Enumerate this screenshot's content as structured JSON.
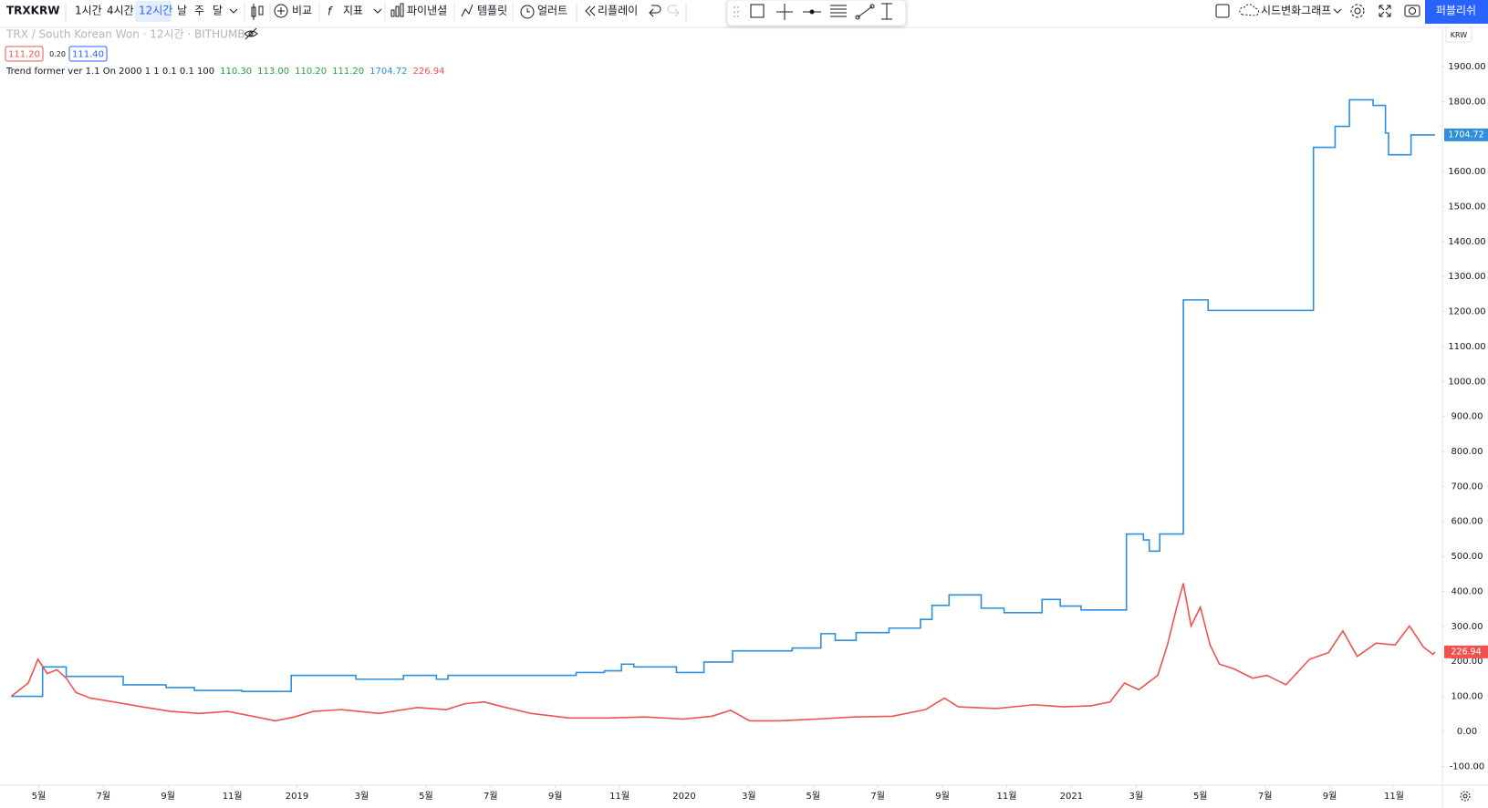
{
  "toolbar": {
    "symbol": "TRXKRW",
    "intervals": [
      "1시간",
      "4시간",
      "12시간",
      "날",
      "주",
      "달"
    ],
    "compare": "비교",
    "indicators": "지표",
    "financials": "파이낸셜",
    "templates": "템플릿",
    "alerts": "얼러트",
    "replay": "리플레이",
    "layout_name": "시드변화그래프",
    "publish": "퍼블리쉬"
  },
  "header": {
    "description": "TRX / South Korean Won · 12시간 · BITHUMB",
    "bid": "111.20",
    "spread": "0.20",
    "ask": "111.40",
    "indicator": {
      "name": "Trend former ver 1.1 On 2000 1 1 0.1 0.1 100",
      "values": [
        "110.30",
        "113.00",
        "110.20",
        "111.20"
      ]
    }
  },
  "currency": "KRW",
  "chart_data": {
    "type": "line",
    "grid": false,
    "xlim": [
      2018.233,
      2021.958
    ],
    "ylim": [
      -154,
      2012
    ],
    "xticks": [
      {
        "value": 2018.333,
        "label": "5월"
      },
      {
        "value": 2018.5,
        "label": "7월"
      },
      {
        "value": 2018.667,
        "label": "9월"
      },
      {
        "value": 2018.833,
        "label": "11월"
      },
      2019,
      {
        "value": 2019.167,
        "label": "3월"
      },
      {
        "value": 2019.333,
        "label": "5월"
      },
      {
        "value": 2019.5,
        "label": "7월"
      },
      {
        "value": 2019.667,
        "label": "9월"
      },
      {
        "value": 2019.833,
        "label": "11월"
      },
      2020,
      {
        "value": 2020.167,
        "label": "3월"
      },
      {
        "value": 2020.333,
        "label": "5월"
      },
      {
        "value": 2020.5,
        "label": "7월"
      },
      {
        "value": 2020.667,
        "label": "9월"
      },
      {
        "value": 2020.833,
        "label": "11월"
      },
      2021,
      {
        "value": 2021.167,
        "label": "3월"
      },
      {
        "value": 2021.333,
        "label": "5월"
      },
      {
        "value": 2021.5,
        "label": "7월"
      },
      {
        "value": 2021.667,
        "label": "9월"
      },
      {
        "value": 2021.833,
        "label": "11월"
      }
    ],
    "yticks": [
      {
        "value": -100,
        "label": "-100.00"
      },
      {
        "value": 0,
        "label": "0.00"
      },
      {
        "value": 100,
        "label": "100.00"
      },
      {
        "value": 200,
        "label": "200.00"
      },
      {
        "value": 300,
        "label": "300.00"
      },
      {
        "value": 400,
        "label": "400.00"
      },
      {
        "value": 500,
        "label": "500.00"
      },
      {
        "value": 600,
        "label": "600.00"
      },
      {
        "value": 700,
        "label": "700.00"
      },
      {
        "value": 800,
        "label": "800.00"
      },
      {
        "value": 900,
        "label": "900.00"
      },
      {
        "value": 1000,
        "label": "1000.00"
      },
      {
        "value": 1100,
        "label": "1100.00"
      },
      {
        "value": 1200,
        "label": "1200.00"
      },
      {
        "value": 1300,
        "label": "1300.00"
      },
      {
        "value": 1400,
        "label": "1400.00"
      },
      {
        "value": 1500,
        "label": "1500.00"
      },
      {
        "value": 1600,
        "label": "1600.00"
      },
      {
        "value": 1700,
        "label": "1700.00"
      },
      {
        "value": 1800,
        "label": "1800.00"
      },
      {
        "value": 1900,
        "label": "1900.00"
      }
    ],
    "series": [
      {
        "color": "#2f8fdc",
        "step": true,
        "x": [
          2018.262,
          2018.343,
          2018.404,
          2018.551,
          2018.662,
          2018.735,
          2018.858,
          2018.985,
          2019.152,
          2019.275,
          2019.36,
          2019.39,
          2019.721,
          2019.794,
          2019.838,
          2019.87,
          2019.98,
          2020.051,
          2020.125,
          2020.279,
          2020.353,
          2020.39,
          2020.444,
          2020.529,
          2020.61,
          2020.64,
          2020.684,
          2020.767,
          2020.826,
          2020.924,
          2020.971,
          2021.025,
          2021.142,
          2021.186,
          2021.201,
          2021.228,
          2021.289,
          2021.353,
          2021.625,
          2021.681,
          2021.718,
          2021.779,
          2021.811,
          2021.819,
          2021.877,
          2021.939
        ],
        "values": [
          100,
          184,
          157,
          133,
          125,
          117,
          114,
          160,
          149,
          160,
          149,
          160,
          168,
          173,
          192,
          184,
          168,
          198,
          230,
          238,
          279,
          260,
          282,
          295,
          320,
          360,
          390,
          352,
          339,
          377,
          358,
          347,
          564,
          547,
          515,
          564,
          1233,
          1203,
          1669,
          1729,
          1805,
          1789,
          1710,
          1648,
          1704.72,
          1704.72
        ]
      },
      {
        "color": "#ef5350",
        "step": false,
        "x": [
          2018.262,
          2018.306,
          2018.331,
          2018.355,
          2018.38,
          2018.404,
          2018.429,
          2018.466,
          2018.527,
          2018.6,
          2018.674,
          2018.748,
          2018.821,
          2018.895,
          2018.944,
          2018.993,
          2019.042,
          2019.115,
          2019.213,
          2019.311,
          2019.385,
          2019.434,
          2019.483,
          2019.532,
          2019.605,
          2019.703,
          2019.801,
          2019.9,
          2019.998,
          2020.071,
          2020.12,
          2020.169,
          2020.243,
          2020.341,
          2020.439,
          2020.537,
          2020.623,
          2020.672,
          2020.708,
          2020.806,
          2020.904,
          2020.978,
          2021.051,
          2021.1,
          2021.137,
          2021.174,
          2021.223,
          2021.248,
          2021.272,
          2021.289,
          2021.309,
          2021.333,
          2021.358,
          2021.382,
          2021.419,
          2021.468,
          2021.505,
          2021.554,
          2021.615,
          2021.664,
          2021.701,
          2021.738,
          2021.787,
          2021.836,
          2021.873,
          2021.909,
          2021.934,
          2021.939
        ],
        "values": [
          100,
          138,
          206,
          165,
          176,
          152,
          111,
          95,
          84,
          70,
          57,
          51,
          57,
          41,
          30,
          41,
          57,
          62,
          51,
          68,
          62,
          79,
          84,
          70,
          51,
          38,
          38,
          41,
          35,
          43,
          60,
          30,
          30,
          35,
          41,
          43,
          62,
          95,
          70,
          65,
          76,
          70,
          73,
          84,
          138,
          119,
          160,
          247,
          355,
          423,
          301,
          355,
          247,
          192,
          179,
          152,
          160,
          133,
          206,
          225,
          287,
          214,
          252,
          247,
          301,
          241,
          220,
          226.94
        ]
      }
    ]
  }
}
